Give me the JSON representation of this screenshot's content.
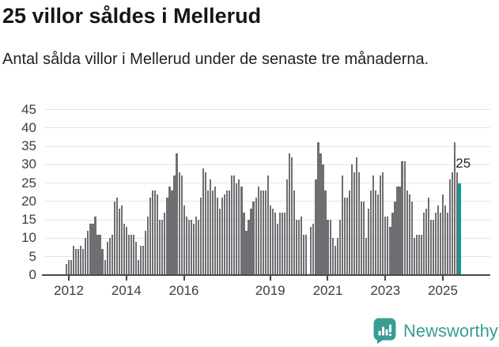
{
  "header": {
    "title": "25 villor såldes i Mellerud",
    "subtitle": "Antal sålda villor i Mellerud under de senaste tre månaderna."
  },
  "footer": {
    "brand": "Newsworthy"
  },
  "colors": {
    "bar": "#6f6e72",
    "highlight": "#089e96",
    "brand": "#399c95",
    "axis_text": "#3d3d3d"
  },
  "chart_data": {
    "type": "bar",
    "title": "25 villor såldes i Mellerud",
    "subtitle": "Antal sålda villor i Mellerud under de senaste tre månaderna.",
    "ylabel": "",
    "xlabel": "",
    "frequency": "monthly",
    "x_start": "2011-12",
    "x_end": "2025-08",
    "ylim": [
      0,
      45
    ],
    "grid": true,
    "y_ticks": [
      0,
      5,
      10,
      15,
      20,
      25,
      30,
      35,
      40,
      45
    ],
    "x_ticks": [
      {
        "label": "2012",
        "month_index": 1
      },
      {
        "label": "2014",
        "month_index": 25
      },
      {
        "label": "2016",
        "month_index": 49
      },
      {
        "label": "2019",
        "month_index": 85
      },
      {
        "label": "2021",
        "month_index": 109
      },
      {
        "label": "2023",
        "month_index": 133
      },
      {
        "label": "2025",
        "month_index": 157
      }
    ],
    "values": [
      3,
      4,
      4,
      8,
      7,
      7,
      8,
      7,
      10,
      12,
      14,
      14,
      16,
      11,
      11,
      7,
      4,
      9,
      10,
      11,
      20,
      21,
      18,
      19,
      14,
      13,
      11,
      11,
      11,
      9,
      4,
      8,
      8,
      12,
      16,
      21,
      23,
      23,
      22,
      15,
      15,
      17,
      21,
      24,
      23,
      27,
      33,
      28,
      27,
      19,
      16,
      15,
      15,
      14,
      16,
      15,
      21,
      29,
      28,
      23,
      26,
      23,
      24,
      21,
      18,
      21,
      22,
      23,
      23,
      27,
      27,
      25,
      26,
      24,
      17,
      12,
      15,
      18,
      20,
      21,
      24,
      23,
      23,
      23,
      27,
      19,
      18,
      17,
      14,
      17,
      17,
      17,
      26,
      33,
      32,
      23,
      15,
      15,
      16,
      11,
      11,
      0,
      13,
      14,
      26,
      36,
      33,
      30,
      23,
      15,
      15,
      10,
      8,
      10,
      15,
      27,
      21,
      21,
      23,
      30,
      28,
      32,
      28,
      20,
      20,
      10,
      18,
      23,
      27,
      23,
      22,
      27,
      28,
      16,
      16,
      13,
      17,
      20,
      24,
      24,
      31,
      31,
      23,
      22,
      20,
      10,
      11,
      11,
      11,
      17,
      18,
      21,
      15,
      15,
      17,
      19,
      17,
      22,
      19,
      17,
      26,
      28,
      36,
      28,
      25
    ],
    "annotation": {
      "text": "25",
      "applies_to": "last-bar"
    },
    "highlighted_last_value": 25
  }
}
